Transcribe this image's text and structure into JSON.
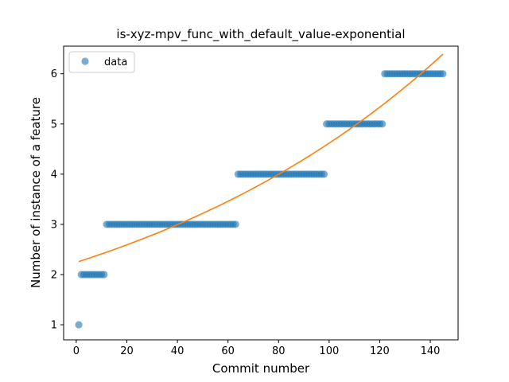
{
  "chart_data": {
    "type": "scatter",
    "title": "is-xyz-mpv_func_with_default_value-exponential",
    "xlabel": "Commit number",
    "ylabel": "Number of instance of a feature",
    "xlim": [
      -5,
      151
    ],
    "ylim": [
      0.7,
      6.55
    ],
    "xticks": [
      0,
      20,
      40,
      60,
      80,
      100,
      120,
      140
    ],
    "yticks": [
      1,
      2,
      3,
      4,
      5,
      6
    ],
    "grid": false,
    "legend": {
      "position": "upper-left",
      "entries": [
        "data"
      ]
    },
    "colors": {
      "points": "#1f77b4",
      "fit": "#ff7f0e"
    },
    "series": [
      {
        "name": "data",
        "kind": "scatter",
        "segments": [
          {
            "x_start": 1,
            "x_end": 1,
            "y": 1
          },
          {
            "x_start": 2,
            "x_end": 11,
            "y": 2
          },
          {
            "x_start": 12,
            "x_end": 63,
            "y": 3
          },
          {
            "x_start": 64,
            "x_end": 98,
            "y": 4
          },
          {
            "x_start": 99,
            "x_end": 121,
            "y": 5
          },
          {
            "x_start": 122,
            "x_end": 145,
            "y": 6
          }
        ]
      },
      {
        "kind": "line",
        "function": "exponential",
        "x_range": [
          1,
          145
        ],
        "y_start": 2.26,
        "y_end": 6.39
      }
    ]
  }
}
